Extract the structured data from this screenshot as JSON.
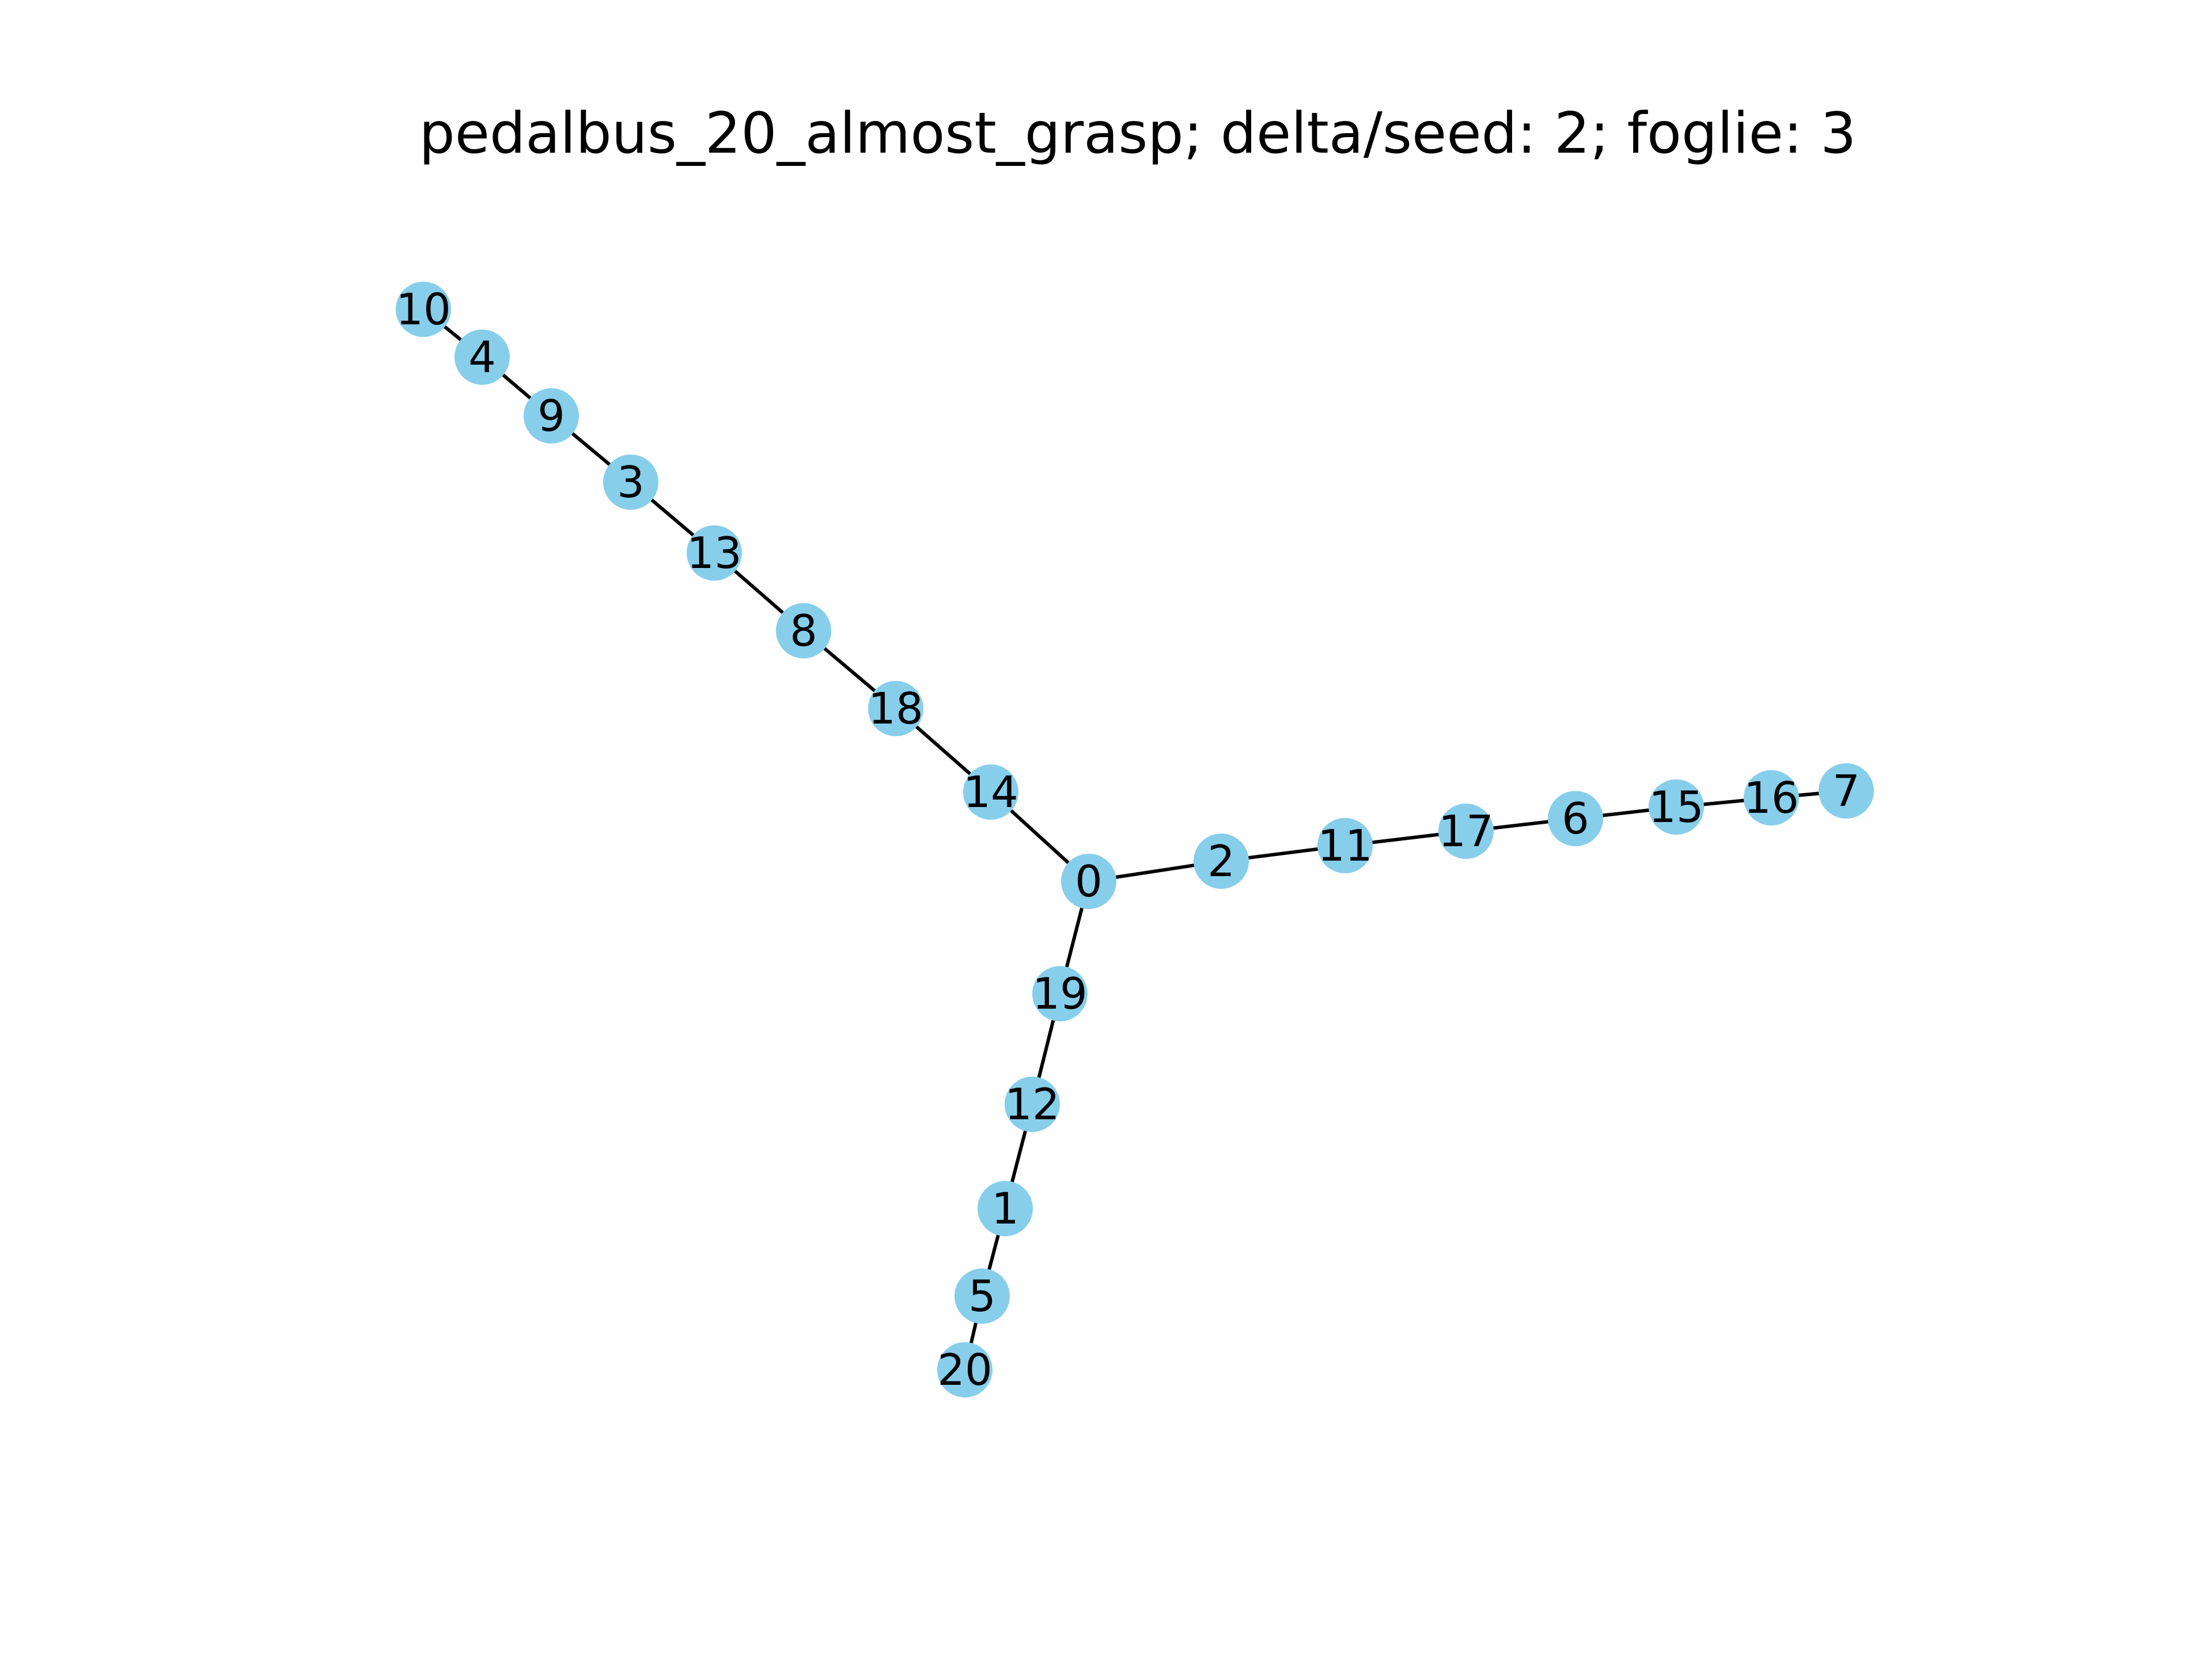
{
  "title": "pedalbus_20_almost_grasp; delta/seed: 2; foglie: 3",
  "colors": {
    "node": "#87ceeb",
    "edge": "#000000",
    "label": "#000000",
    "background": "#ffffff"
  },
  "graph": {
    "nodes": [
      "0",
      "1",
      "2",
      "3",
      "4",
      "5",
      "6",
      "7",
      "8",
      "9",
      "10",
      "11",
      "12",
      "13",
      "14",
      "15",
      "16",
      "17",
      "18",
      "19",
      "20"
    ],
    "edges": [
      [
        "10",
        "4"
      ],
      [
        "4",
        "9"
      ],
      [
        "9",
        "3"
      ],
      [
        "3",
        "13"
      ],
      [
        "13",
        "8"
      ],
      [
        "8",
        "18"
      ],
      [
        "18",
        "14"
      ],
      [
        "14",
        "0"
      ],
      [
        "0",
        "2"
      ],
      [
        "2",
        "11"
      ],
      [
        "11",
        "17"
      ],
      [
        "17",
        "6"
      ],
      [
        "6",
        "15"
      ],
      [
        "15",
        "16"
      ],
      [
        "16",
        "7"
      ],
      [
        "0",
        "19"
      ],
      [
        "19",
        "12"
      ],
      [
        "12",
        "1"
      ],
      [
        "1",
        "5"
      ],
      [
        "5",
        "20"
      ]
    ]
  }
}
